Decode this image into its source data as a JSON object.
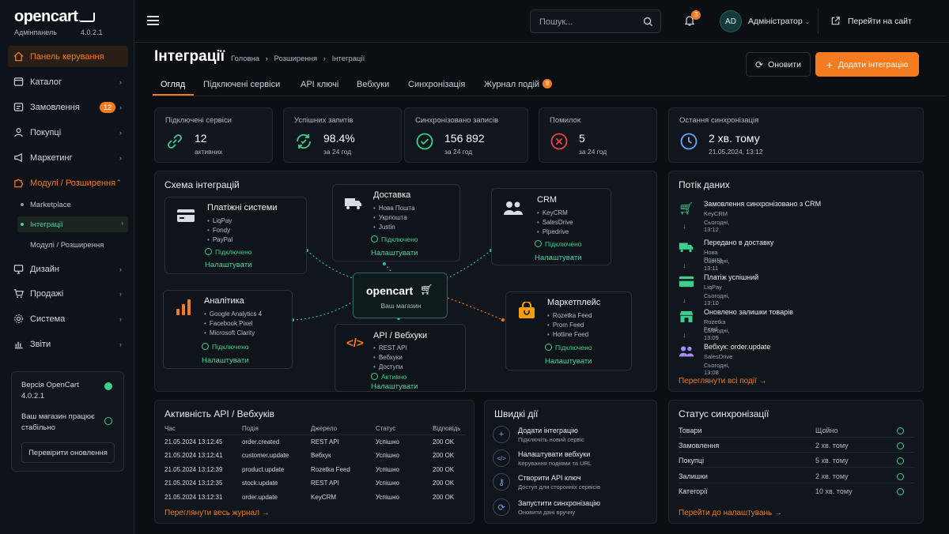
{
  "brand": {
    "name": "opencart",
    "sub": "Адмінпанель",
    "version": "4.0.2.1"
  },
  "sidebar": {
    "items": [
      {
        "label": "Панель керування",
        "icon": "home-icon",
        "active": true
      },
      {
        "label": "Каталог",
        "icon": "tag-icon"
      },
      {
        "label": "Замовлення",
        "icon": "cart-icon",
        "badge": "12"
      },
      {
        "label": "Покупці",
        "icon": "user-icon"
      },
      {
        "label": "Маркетинг",
        "icon": "megaphone-icon"
      },
      {
        "label": "Модулі / Розширення",
        "icon": "puzzle-icon",
        "open": true
      },
      {
        "label": "Дизайн",
        "icon": "monitor-icon"
      },
      {
        "label": "Продажі",
        "icon": "shopping-icon"
      },
      {
        "label": "Система",
        "icon": "gear-icon"
      },
      {
        "label": "Звіти",
        "icon": "chart-icon"
      }
    ],
    "sub": [
      "Marketplace",
      "Інтеграції",
      "Модулі / Розширення"
    ],
    "card": {
      "version_label": "Версія OpenCart",
      "version": "4.0.2.1",
      "status": "Ваш магазин працює стабільно",
      "button": "Перевірити оновлення"
    }
  },
  "topbar": {
    "search_placeholder": "Пошук...",
    "notif_count": "3",
    "avatar": "AD",
    "user": "Адміністратор",
    "site": "Перейти на сайт"
  },
  "page": {
    "title": "Інтеграції",
    "breadcrumb": [
      "Головна",
      "Розширення",
      "Інтеграції"
    ],
    "refresh": "Оновити",
    "add": "Додати інтеграцію"
  },
  "tabs": [
    {
      "label": "Огляд"
    },
    {
      "label": "Підключені сервіси"
    },
    {
      "label": "API ключі"
    },
    {
      "label": "Вебхуки"
    },
    {
      "label": "Синхронізація"
    },
    {
      "label": "Журнал подій",
      "badge": "8"
    }
  ],
  "stats": [
    {
      "label": "Підключені сервіси",
      "value": "12",
      "sub": "активних",
      "icon": "link-icon"
    },
    {
      "label": "Успішних запитів",
      "value": "98.4%",
      "sub": "за 24 год",
      "icon": "refresh-icon"
    },
    {
      "label": "Синхронізовано записів",
      "value": "156 892",
      "sub": "за 24 год",
      "icon": "check-circle-icon"
    },
    {
      "label": "Помилок",
      "value": "5",
      "sub": "за 24 год",
      "icon": "error-icon"
    },
    {
      "label": "Остання синхронізація",
      "value": "2 хв. тому",
      "sub": "21.05.2024, 13:12",
      "icon": "clock-icon"
    }
  ],
  "schema": {
    "title": "Схема інтеграцій",
    "center": {
      "name": "opencart",
      "sub": "Ваш магазин"
    },
    "nodes": [
      {
        "title": "Платіжні системи",
        "items": [
          "LiqPay",
          "Fondy",
          "PayPal"
        ],
        "status": "Підключено",
        "action": "Налаштувати",
        "icon": "card-icon"
      },
      {
        "title": "Доставка",
        "items": [
          "Нова Пошта",
          "Укрпошта",
          "Justin"
        ],
        "status": "Підключено",
        "action": "Налаштувати",
        "icon": "truck-icon"
      },
      {
        "title": "CRM",
        "items": [
          "KeyCRM",
          "SalesDrive",
          "Pipedrive"
        ],
        "status": "Підключено",
        "action": "Налаштувати",
        "icon": "users-icon"
      },
      {
        "title": "Аналітика",
        "items": [
          "Google Analytics 4",
          "Facebook Pixel",
          "Microsoft Clarity"
        ],
        "status": "Підключено",
        "action": "Налаштувати",
        "icon": "bar-chart-icon"
      },
      {
        "title": "API / Вебхуки",
        "items": [
          "REST API",
          "Вебхуки",
          "Доступи"
        ],
        "status": "Активно",
        "action": "Налаштувати",
        "icon": "code-icon"
      },
      {
        "title": "Маркетплейс",
        "items": [
          "Rozetka Feed",
          "Prom Feed",
          "Hotline Feed"
        ],
        "status": "Підключено",
        "action": "Налаштувати",
        "icon": "bag-icon"
      }
    ]
  },
  "flow": {
    "title": "Потік даних",
    "items": [
      {
        "title": "Замовлення синхронізовано з CRM",
        "src": "KeyCRM",
        "time": "Сьогодні, 13:12",
        "icon": "cart-icon"
      },
      {
        "title": "Передано в доставку",
        "src": "Нова Пошта",
        "time": "Сьогодні, 13:11",
        "icon": "truck-icon"
      },
      {
        "title": "Платіж успішний",
        "src": "LiqPay",
        "time": "Сьогодні, 13:10",
        "icon": "card-icon"
      },
      {
        "title": "Оновлено залишки товарів",
        "src": "Rozetka Feed",
        "time": "Сьогодні, 13:09",
        "icon": "store-icon"
      },
      {
        "title": "Вебхук: order.update",
        "src": "SalesDrive",
        "time": "Сьогодні, 13:08",
        "icon": "users-icon"
      }
    ],
    "link": "Переглянути всі події"
  },
  "activity": {
    "title": "Активність API / Вебхуків",
    "headers": [
      "Час",
      "Подія",
      "Джерело",
      "Статус",
      "Відповідь"
    ],
    "rows": [
      [
        "21.05.2024 13:12:45",
        "order.created",
        "REST API",
        "Успішно",
        "200 OK"
      ],
      [
        "21.05.2024 13:12:41",
        "customer.update",
        "Вебхук",
        "Успішно",
        "200 OK"
      ],
      [
        "21.05.2024 13:12:39",
        "product.update",
        "Rozetka Feed",
        "Успішно",
        "200 OK"
      ],
      [
        "21.05.2024 13:12:35",
        "stock.update",
        "REST API",
        "Успішно",
        "200 OK"
      ],
      [
        "21.05.2024 13:12:31",
        "order.update",
        "KeyCRM",
        "Успішно",
        "200 OK"
      ]
    ],
    "link": "Переглянути весь журнал"
  },
  "quick": {
    "title": "Швидкі дії",
    "items": [
      {
        "title": "Додати інтеграцію",
        "sub": "Підключіть новий сервіс",
        "icon": "plus-icon"
      },
      {
        "title": "Налаштувати вебхуки",
        "sub": "Керування подіями та URL",
        "icon": "code-icon"
      },
      {
        "title": "Створити API ключ",
        "sub": "Доступ для сторонніх сервісів",
        "icon": "key-icon"
      },
      {
        "title": "Запустити синхронізацію",
        "sub": "Оновити дані вручну",
        "icon": "sync-icon"
      }
    ]
  },
  "sync": {
    "title": "Статус синхронізації",
    "rows": [
      {
        "name": "Товари",
        "time": "Щойно"
      },
      {
        "name": "Замовлення",
        "time": "2 хв. тому"
      },
      {
        "name": "Покупці",
        "time": "5 хв. тому"
      },
      {
        "name": "Залишки",
        "time": "2 хв. тому"
      },
      {
        "name": "Категорії",
        "time": "10 хв. тому"
      }
    ],
    "link": "Перейти до налаштувань"
  }
}
